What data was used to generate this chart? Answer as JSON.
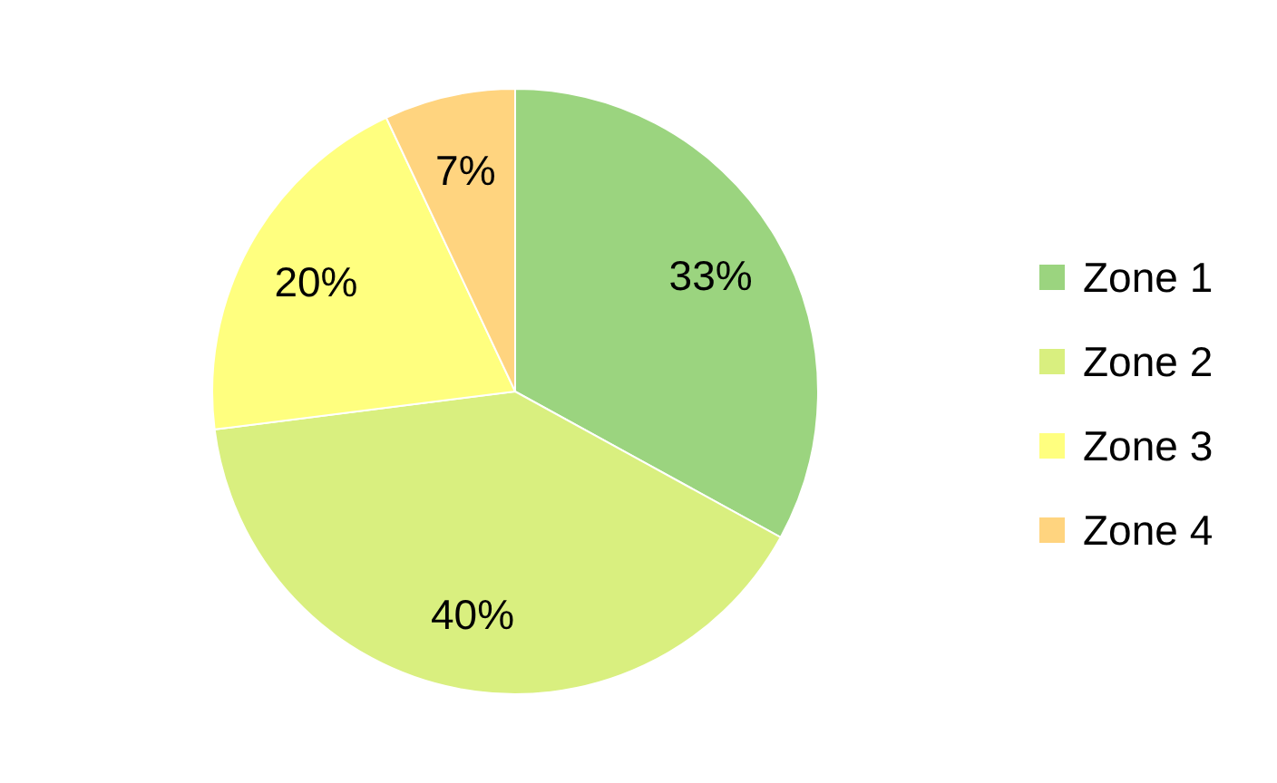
{
  "chart_data": {
    "type": "pie",
    "categories": [
      "Zone 1",
      "Zone 2",
      "Zone 3",
      "Zone 4"
    ],
    "values": [
      33,
      40,
      20,
      7
    ],
    "value_labels": [
      "33%",
      "40%",
      "20%",
      "7%"
    ],
    "colors": [
      "#9bd47f",
      "#d9ef7f",
      "#ffff7f",
      "#ffd47f"
    ],
    "legend": "right"
  }
}
